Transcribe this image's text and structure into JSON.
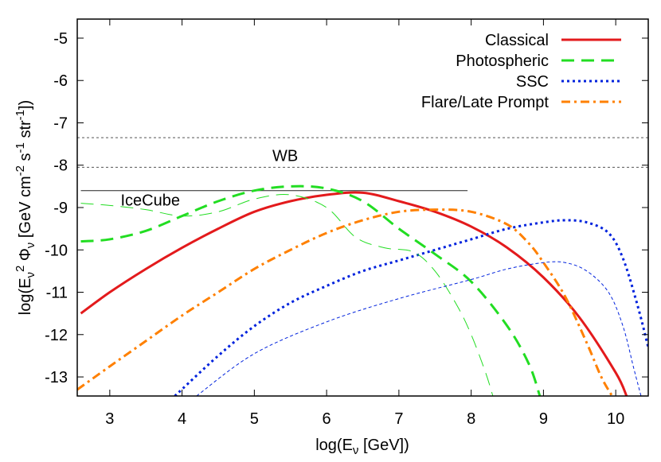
{
  "chart_data": {
    "type": "line",
    "title": "",
    "xlabel": "log(Eν [GeV])",
    "ylabel": "log(Eν2 Φν [GeV cm-2 s-1 str-1])",
    "xlim": [
      2.55,
      10.45
    ],
    "ylim": [
      -13.45,
      -4.55
    ],
    "x_ticks": [
      3,
      4,
      5,
      6,
      7,
      8,
      9,
      10
    ],
    "y_ticks": [
      -13,
      -12,
      -11,
      -10,
      -9,
      -8,
      -7,
      -6,
      -5
    ],
    "grid": false,
    "legend_position": "top-right",
    "series": [
      {
        "name": "Classical",
        "color": "#e31a1c",
        "dash": "solid",
        "width": 3,
        "x": [
          2.6,
          3.0,
          3.5,
          4.0,
          4.5,
          5.0,
          5.5,
          6.0,
          6.5,
          7.0,
          7.5,
          8.0,
          8.5,
          9.0,
          9.5,
          10.0,
          10.15
        ],
        "y": [
          -11.5,
          -11.0,
          -10.45,
          -9.95,
          -9.5,
          -9.1,
          -8.85,
          -8.7,
          -8.65,
          -8.85,
          -9.1,
          -9.45,
          -9.95,
          -10.65,
          -11.6,
          -12.9,
          -13.45
        ]
      },
      {
        "name": "Photospheric",
        "color": "#22dd22",
        "dash": "long-dash",
        "width": 3,
        "x": [
          2.6,
          3.0,
          3.5,
          4.0,
          4.5,
          5.0,
          5.5,
          6.0,
          6.5,
          7.0,
          7.5,
          8.0,
          8.5,
          8.8,
          8.95
        ],
        "y": [
          -9.8,
          -9.75,
          -9.55,
          -9.2,
          -8.85,
          -8.6,
          -8.5,
          -8.55,
          -8.85,
          -9.5,
          -10.1,
          -10.75,
          -11.8,
          -12.7,
          -13.45
        ]
      },
      {
        "name": "SSC",
        "color": "#0022dd",
        "dash": "dotted",
        "width": 3,
        "x": [
          3.9,
          4.5,
          5.0,
          5.5,
          6.0,
          6.5,
          7.0,
          7.5,
          8.0,
          8.5,
          9.0,
          9.3,
          9.6,
          9.9,
          10.1,
          10.3,
          10.45
        ],
        "y": [
          -13.45,
          -12.5,
          -11.8,
          -11.25,
          -10.85,
          -10.5,
          -10.25,
          -10.0,
          -9.75,
          -9.5,
          -9.35,
          -9.3,
          -9.35,
          -9.6,
          -10.2,
          -11.3,
          -12.3
        ]
      },
      {
        "name": "Flare/Late Prompt",
        "color": "#ff8000",
        "dash": "dash-dot",
        "width": 3,
        "x": [
          2.55,
          3.0,
          3.5,
          4.0,
          4.5,
          5.0,
          5.5,
          6.0,
          6.5,
          7.0,
          7.5,
          8.0,
          8.5,
          8.8,
          9.0,
          9.3,
          9.6,
          9.8,
          9.95
        ],
        "y": [
          -13.3,
          -12.75,
          -12.15,
          -11.55,
          -11.0,
          -10.45,
          -10.0,
          -9.6,
          -9.3,
          -9.1,
          -9.05,
          -9.1,
          -9.4,
          -9.85,
          -10.3,
          -11.1,
          -12.2,
          -13.0,
          -13.45
        ]
      },
      {
        "color": "#22dd22",
        "dash": "long-dash",
        "width": 1,
        "x": [
          2.6,
          3.0,
          3.5,
          4.0,
          4.5,
          5.0,
          5.5,
          6.0,
          6.4,
          6.8,
          7.2,
          7.5,
          7.8,
          8.0,
          8.2,
          8.3
        ],
        "y": [
          -8.9,
          -8.95,
          -9.05,
          -9.2,
          -9.1,
          -8.8,
          -8.7,
          -9.0,
          -9.7,
          -9.95,
          -10.05,
          -10.5,
          -11.3,
          -12.0,
          -12.9,
          -13.45
        ]
      },
      {
        "color": "#0022dd",
        "dash": "short-dash",
        "width": 1,
        "x": [
          4.2,
          5.0,
          6.0,
          7.0,
          8.0,
          8.5,
          9.0,
          9.3,
          9.6,
          9.9,
          10.1,
          10.25,
          10.35
        ],
        "y": [
          -13.45,
          -12.45,
          -11.7,
          -11.15,
          -10.7,
          -10.45,
          -10.3,
          -10.3,
          -10.5,
          -11.0,
          -11.8,
          -12.8,
          -13.45
        ]
      }
    ],
    "reference_lines": [
      {
        "name": "WB",
        "y": [
          -7.35,
          -8.05
        ],
        "x": [
          2.55,
          10.45
        ],
        "style": "dotted"
      },
      {
        "name": "IceCube",
        "y": -8.6,
        "x": [
          2.6,
          7.95
        ],
        "style": "solid"
      }
    ],
    "annotations": [
      {
        "text": "WB",
        "x": 5.25,
        "y": -7.9
      },
      {
        "text": "IceCube",
        "x": 3.15,
        "y": -8.95
      }
    ]
  }
}
